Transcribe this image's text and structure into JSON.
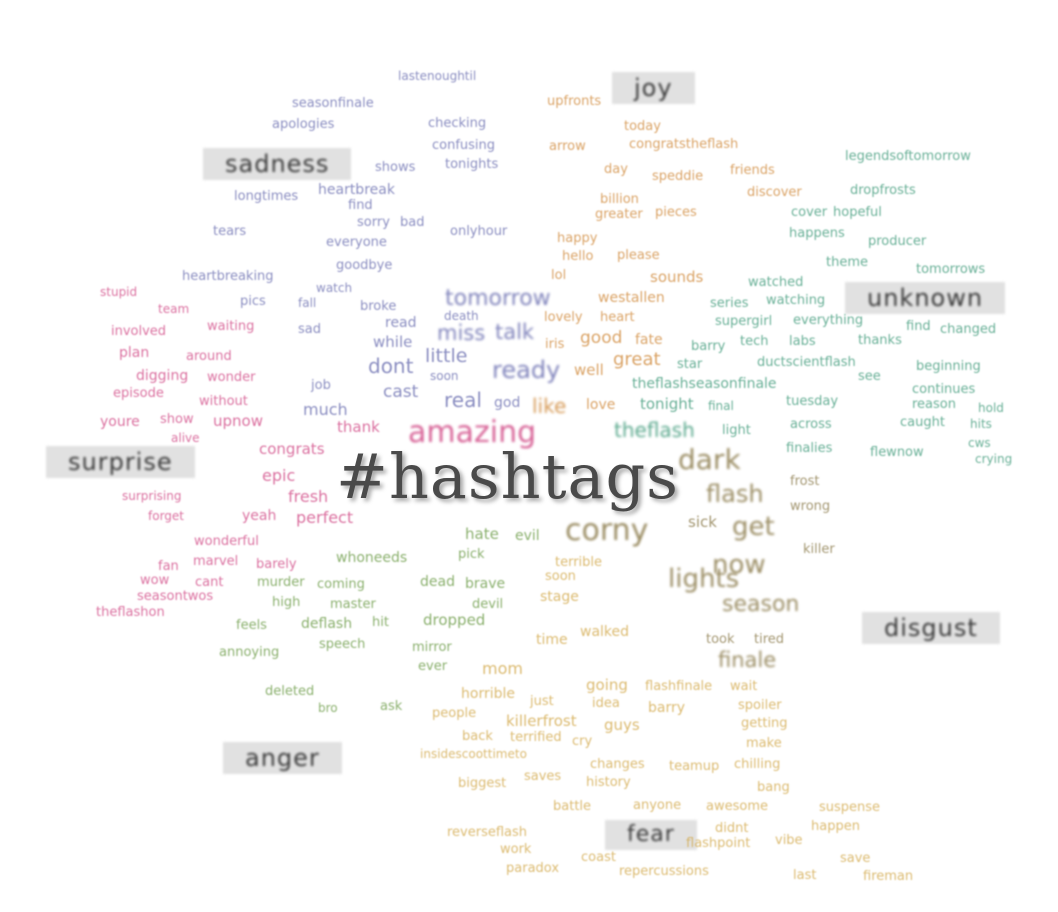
{
  "title": "#hashtags",
  "colors": {
    "sadness": "#6b6fb0",
    "joy": "#d08a3c",
    "unknown": "#3f9a7a",
    "surprise": "#d14a86",
    "anger": "#6a9a45",
    "fear": "#d2a84a",
    "disgust": "#8a7a4a",
    "neutral": "#999999"
  },
  "emotions": [
    {
      "key": "joy",
      "label": "joy"
    },
    {
      "key": "sadness",
      "label": "sadness"
    },
    {
      "key": "unknown",
      "label": "unknown"
    },
    {
      "key": "surprise",
      "label": "surprise"
    },
    {
      "key": "disgust",
      "label": "disgust"
    },
    {
      "key": "anger",
      "label": "anger"
    },
    {
      "key": "fear",
      "label": "fear"
    }
  ],
  "words": [
    {
      "t": "lastenoughtil",
      "c": "sadness"
    },
    {
      "t": "seasonfinale",
      "c": "sadness"
    },
    {
      "t": "apologies",
      "c": "sadness"
    },
    {
      "t": "checking",
      "c": "sadness"
    },
    {
      "t": "confusing",
      "c": "sadness"
    },
    {
      "t": "tonights",
      "c": "sadness"
    },
    {
      "t": "shows",
      "c": "sadness"
    },
    {
      "t": "heartbreak",
      "c": "sadness"
    },
    {
      "t": "longtimes",
      "c": "sadness"
    },
    {
      "t": "find",
      "c": "sadness"
    },
    {
      "t": "tears",
      "c": "sadness"
    },
    {
      "t": "sorry",
      "c": "sadness"
    },
    {
      "t": "bad",
      "c": "sadness"
    },
    {
      "t": "everyone",
      "c": "sadness"
    },
    {
      "t": "onlyhour",
      "c": "sadness"
    },
    {
      "t": "goodbye",
      "c": "sadness"
    },
    {
      "t": "heartbreaking",
      "c": "sadness"
    },
    {
      "t": "pics",
      "c": "sadness"
    },
    {
      "t": "fall",
      "c": "sadness"
    },
    {
      "t": "watch",
      "c": "sadness"
    },
    {
      "t": "broke",
      "c": "sadness"
    },
    {
      "t": "death",
      "c": "sadness"
    },
    {
      "t": "read",
      "c": "sadness"
    },
    {
      "t": "sad",
      "c": "sadness"
    },
    {
      "t": "while",
      "c": "sadness"
    },
    {
      "t": "dont",
      "c": "sadness"
    },
    {
      "t": "little",
      "c": "sadness"
    },
    {
      "t": "soon",
      "c": "sadness"
    },
    {
      "t": "cast",
      "c": "sadness"
    },
    {
      "t": "real",
      "c": "sadness"
    },
    {
      "t": "god",
      "c": "sadness"
    },
    {
      "t": "much",
      "c": "sadness"
    },
    {
      "t": "job",
      "c": "sadness"
    },
    {
      "t": "tomorrow",
      "c": "sadness"
    },
    {
      "t": "miss",
      "c": "sadness"
    },
    {
      "t": "talk",
      "c": "sadness"
    },
    {
      "t": "ready",
      "c": "sadness"
    },
    {
      "t": "upfronts",
      "c": "joy"
    },
    {
      "t": "today",
      "c": "joy"
    },
    {
      "t": "arrow",
      "c": "joy"
    },
    {
      "t": "congratstheflash",
      "c": "joy"
    },
    {
      "t": "day",
      "c": "joy"
    },
    {
      "t": "friends",
      "c": "joy"
    },
    {
      "t": "speddie",
      "c": "joy"
    },
    {
      "t": "billion",
      "c": "joy"
    },
    {
      "t": "greater",
      "c": "joy"
    },
    {
      "t": "pieces",
      "c": "joy"
    },
    {
      "t": "happy",
      "c": "joy"
    },
    {
      "t": "hello",
      "c": "joy"
    },
    {
      "t": "please",
      "c": "joy"
    },
    {
      "t": "lol",
      "c": "joy"
    },
    {
      "t": "sounds",
      "c": "joy"
    },
    {
      "t": "westallen",
      "c": "joy"
    },
    {
      "t": "heart",
      "c": "joy"
    },
    {
      "t": "lovely",
      "c": "joy"
    },
    {
      "t": "iris",
      "c": "joy"
    },
    {
      "t": "good",
      "c": "joy"
    },
    {
      "t": "fate",
      "c": "joy"
    },
    {
      "t": "great",
      "c": "joy"
    },
    {
      "t": "well",
      "c": "joy"
    },
    {
      "t": "like",
      "c": "joy"
    },
    {
      "t": "love",
      "c": "joy"
    },
    {
      "t": "discover",
      "c": "joy"
    },
    {
      "t": "legendsoftomorrow",
      "c": "unknown"
    },
    {
      "t": "dropfrosts",
      "c": "unknown"
    },
    {
      "t": "cover",
      "c": "unknown"
    },
    {
      "t": "hopeful",
      "c": "unknown"
    },
    {
      "t": "happens",
      "c": "unknown"
    },
    {
      "t": "producer",
      "c": "unknown"
    },
    {
      "t": "tomorrows",
      "c": "unknown"
    },
    {
      "t": "watched",
      "c": "unknown"
    },
    {
      "t": "theme",
      "c": "unknown"
    },
    {
      "t": "series",
      "c": "unknown"
    },
    {
      "t": "watching",
      "c": "unknown"
    },
    {
      "t": "supergirl",
      "c": "unknown"
    },
    {
      "t": "everything",
      "c": "unknown"
    },
    {
      "t": "tech",
      "c": "unknown"
    },
    {
      "t": "labs",
      "c": "unknown"
    },
    {
      "t": "thanks",
      "c": "unknown"
    },
    {
      "t": "find",
      "c": "unknown"
    },
    {
      "t": "changed",
      "c": "unknown"
    },
    {
      "t": "barry",
      "c": "unknown"
    },
    {
      "t": "beginning",
      "c": "unknown"
    },
    {
      "t": "ductscientflash",
      "c": "unknown"
    },
    {
      "t": "star",
      "c": "unknown"
    },
    {
      "t": "see",
      "c": "unknown"
    },
    {
      "t": "theflashseasonfinale",
      "c": "unknown"
    },
    {
      "t": "continues",
      "c": "unknown"
    },
    {
      "t": "tonight",
      "c": "unknown"
    },
    {
      "t": "final",
      "c": "unknown"
    },
    {
      "t": "tuesday",
      "c": "unknown"
    },
    {
      "t": "reason",
      "c": "unknown"
    },
    {
      "t": "hold",
      "c": "unknown"
    },
    {
      "t": "theflash",
      "c": "unknown"
    },
    {
      "t": "light",
      "c": "unknown"
    },
    {
      "t": "across",
      "c": "unknown"
    },
    {
      "t": "caught",
      "c": "unknown"
    },
    {
      "t": "hits",
      "c": "unknown"
    },
    {
      "t": "finalies",
      "c": "unknown"
    },
    {
      "t": "flewnow",
      "c": "unknown"
    },
    {
      "t": "cws",
      "c": "unknown"
    },
    {
      "t": "crying",
      "c": "unknown"
    },
    {
      "t": "stupid",
      "c": "surprise"
    },
    {
      "t": "team",
      "c": "surprise"
    },
    {
      "t": "involved",
      "c": "surprise"
    },
    {
      "t": "waiting",
      "c": "surprise"
    },
    {
      "t": "plan",
      "c": "surprise"
    },
    {
      "t": "around",
      "c": "surprise"
    },
    {
      "t": "digging",
      "c": "surprise"
    },
    {
      "t": "wonder",
      "c": "surprise"
    },
    {
      "t": "episode",
      "c": "surprise"
    },
    {
      "t": "without",
      "c": "surprise"
    },
    {
      "t": "youre",
      "c": "surprise"
    },
    {
      "t": "show",
      "c": "surprise"
    },
    {
      "t": "upnow",
      "c": "surprise"
    },
    {
      "t": "alive",
      "c": "surprise"
    },
    {
      "t": "thank",
      "c": "surprise"
    },
    {
      "t": "amazing",
      "c": "surprise"
    },
    {
      "t": "congrats",
      "c": "surprise"
    },
    {
      "t": "epic",
      "c": "surprise"
    },
    {
      "t": "fresh",
      "c": "surprise"
    },
    {
      "t": "yeah",
      "c": "surprise"
    },
    {
      "t": "perfect",
      "c": "surprise"
    },
    {
      "t": "wonderful",
      "c": "surprise"
    },
    {
      "t": "marvel",
      "c": "surprise"
    },
    {
      "t": "barely",
      "c": "surprise"
    },
    {
      "t": "fan",
      "c": "surprise"
    },
    {
      "t": "wow",
      "c": "surprise"
    },
    {
      "t": "cant",
      "c": "surprise"
    },
    {
      "t": "seasontwos",
      "c": "surprise"
    },
    {
      "t": "theflashon",
      "c": "surprise"
    },
    {
      "t": "forget",
      "c": "surprise"
    },
    {
      "t": "surprising",
      "c": "surprise"
    },
    {
      "t": "murder",
      "c": "anger"
    },
    {
      "t": "coming",
      "c": "anger"
    },
    {
      "t": "high",
      "c": "anger"
    },
    {
      "t": "master",
      "c": "anger"
    },
    {
      "t": "feels",
      "c": "anger"
    },
    {
      "t": "deflash",
      "c": "anger"
    },
    {
      "t": "hit",
      "c": "anger"
    },
    {
      "t": "annoying",
      "c": "anger"
    },
    {
      "t": "speech",
      "c": "anger"
    },
    {
      "t": "deleted",
      "c": "anger"
    },
    {
      "t": "bro",
      "c": "anger"
    },
    {
      "t": "ask",
      "c": "anger"
    },
    {
      "t": "whoneeds",
      "c": "anger"
    },
    {
      "t": "hate",
      "c": "anger"
    },
    {
      "t": "evil",
      "c": "anger"
    },
    {
      "t": "pick",
      "c": "anger"
    },
    {
      "t": "dead",
      "c": "anger"
    },
    {
      "t": "dropped",
      "c": "anger"
    },
    {
      "t": "mirror",
      "c": "anger"
    },
    {
      "t": "ever",
      "c": "anger"
    },
    {
      "t": "devil",
      "c": "anger"
    },
    {
      "t": "brave",
      "c": "anger"
    },
    {
      "t": "people",
      "c": "fear"
    },
    {
      "t": "horrible",
      "c": "fear"
    },
    {
      "t": "killerfrost",
      "c": "fear"
    },
    {
      "t": "back",
      "c": "fear"
    },
    {
      "t": "terrified",
      "c": "fear"
    },
    {
      "t": "cry",
      "c": "fear"
    },
    {
      "t": "just",
      "c": "fear"
    },
    {
      "t": "guys",
      "c": "fear"
    },
    {
      "t": "insidescoottimeto",
      "c": "fear"
    },
    {
      "t": "changes",
      "c": "fear"
    },
    {
      "t": "history",
      "c": "fear"
    },
    {
      "t": "biggest",
      "c": "fear"
    },
    {
      "t": "saves",
      "c": "fear"
    },
    {
      "t": "battle",
      "c": "fear"
    },
    {
      "t": "anyone",
      "c": "fear"
    },
    {
      "t": "awesome",
      "c": "fear"
    },
    {
      "t": "suspense",
      "c": "fear"
    },
    {
      "t": "happen",
      "c": "fear"
    },
    {
      "t": "didnt",
      "c": "fear"
    },
    {
      "t": "flashpoint",
      "c": "fear"
    },
    {
      "t": "vibe",
      "c": "fear"
    },
    {
      "t": "reverseflash",
      "c": "fear"
    },
    {
      "t": "work",
      "c": "fear"
    },
    {
      "t": "coast",
      "c": "fear"
    },
    {
      "t": "save",
      "c": "fear"
    },
    {
      "t": "paradox",
      "c": "fear"
    },
    {
      "t": "repercussions",
      "c": "fear"
    },
    {
      "t": "last",
      "c": "fear"
    },
    {
      "t": "fireman",
      "c": "fear"
    },
    {
      "t": "teamup",
      "c": "fear"
    },
    {
      "t": "chilling",
      "c": "fear"
    },
    {
      "t": "bang",
      "c": "fear"
    },
    {
      "t": "make",
      "c": "fear"
    },
    {
      "t": "getting",
      "c": "fear"
    },
    {
      "t": "spoiler",
      "c": "fear"
    },
    {
      "t": "barry",
      "c": "fear"
    },
    {
      "t": "idea",
      "c": "fear"
    },
    {
      "t": "going",
      "c": "fear"
    },
    {
      "t": "flashfinale",
      "c": "fear"
    },
    {
      "t": "wait",
      "c": "fear"
    },
    {
      "t": "mom",
      "c": "fear"
    },
    {
      "t": "walked",
      "c": "fear"
    },
    {
      "t": "time",
      "c": "fear"
    },
    {
      "t": "stage",
      "c": "fear"
    },
    {
      "t": "soon",
      "c": "fear"
    },
    {
      "t": "terrible",
      "c": "fear"
    },
    {
      "t": "finale",
      "c": "disgust"
    },
    {
      "t": "season",
      "c": "disgust"
    },
    {
      "t": "now",
      "c": "disgust"
    },
    {
      "t": "corny",
      "c": "disgust"
    },
    {
      "t": "get",
      "c": "disgust"
    },
    {
      "t": "sick",
      "c": "disgust"
    },
    {
      "t": "lights",
      "c": "disgust"
    },
    {
      "t": "wrong",
      "c": "disgust"
    },
    {
      "t": "killer",
      "c": "disgust"
    },
    {
      "t": "tired",
      "c": "disgust"
    },
    {
      "t": "took",
      "c": "disgust"
    },
    {
      "t": "flash",
      "c": "disgust"
    },
    {
      "t": "frost",
      "c": "disgust"
    },
    {
      "t": "dark",
      "c": "disgust"
    }
  ]
}
